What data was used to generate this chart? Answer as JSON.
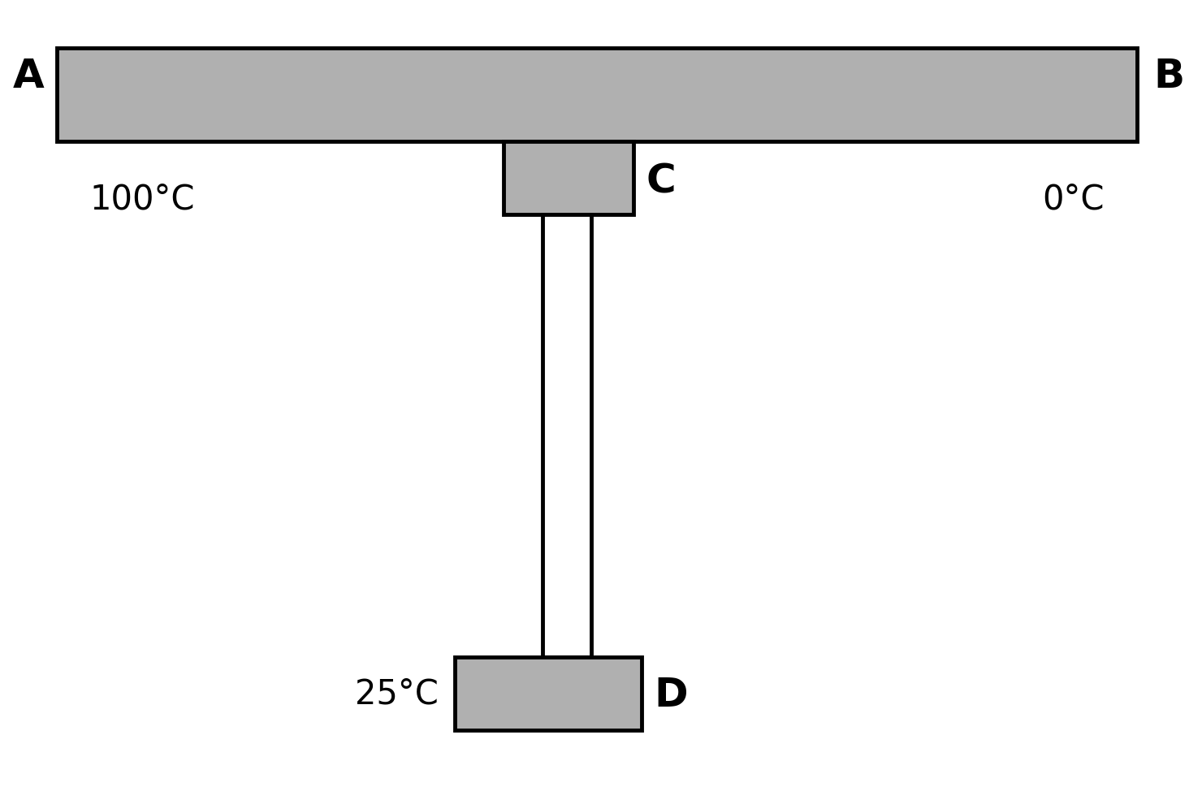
{
  "bg_color": "#ffffff",
  "rod_fill": "#b0b0b0",
  "rod_edge": "#000000",
  "text_color": "#000000",
  "label_A": "A",
  "label_B": "B",
  "label_C": "C",
  "label_D": "D",
  "temp_A": "100°C",
  "temp_B": "0°C",
  "temp_D": "25°C",
  "fontsize_label": 36,
  "fontsize_temp": 30,
  "fig_w": 14.8,
  "fig_h": 9.7,
  "dpi": 100
}
